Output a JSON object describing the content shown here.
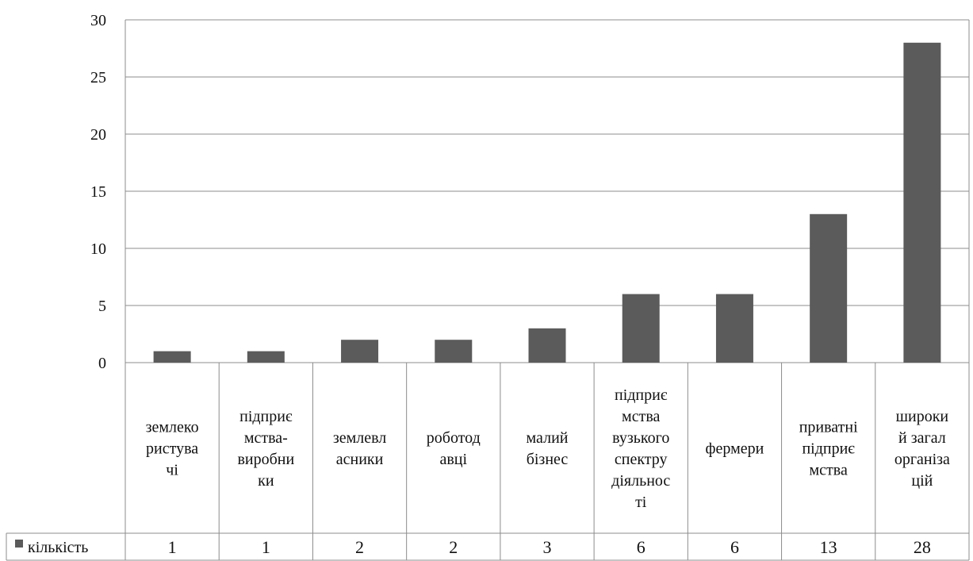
{
  "chart_data": {
    "type": "bar",
    "categories": [
      "землекористувачі",
      "підприємства-виробники",
      "землевласники",
      "роботодавці",
      "малий бізнес",
      "підприємства вузького спектру діяльності",
      "фермери",
      "приватні підприємства",
      "широкий загал організацій"
    ],
    "category_lines": [
      [
        "землеко",
        "ристува",
        "чі"
      ],
      [
        "підприє",
        "мства-",
        "виробни",
        "ки"
      ],
      [
        "землевл",
        "асники"
      ],
      [
        "роботод",
        "авці"
      ],
      [
        "малий",
        "бізнес"
      ],
      [
        "підприє",
        "мства",
        "вузького",
        "спектру",
        "діяльнос",
        "ті"
      ],
      [
        "фермери"
      ],
      [
        "приватні",
        "підприє",
        "мства"
      ],
      [
        "широки",
        "й загал",
        "організа",
        "цій"
      ]
    ],
    "series": [
      {
        "name": "кількість",
        "values": [
          1,
          1,
          2,
          2,
          3,
          6,
          6,
          13,
          28
        ]
      }
    ],
    "value_labels": [
      "1",
      "1",
      "2",
      "2",
      "3",
      "6",
      "6",
      "13",
      "28"
    ],
    "y_ticks": [
      "0",
      "5",
      "10",
      "15",
      "20",
      "25",
      "30"
    ],
    "ylim": [
      0,
      30
    ],
    "grid": true,
    "legend": "data-table-left",
    "title": "",
    "xlabel": "",
    "ylabel": "",
    "colors": {
      "bar": "#5b5b5b",
      "grid": "#8c8c8c",
      "table": "#8c8c8c",
      "text": "#111111"
    }
  }
}
